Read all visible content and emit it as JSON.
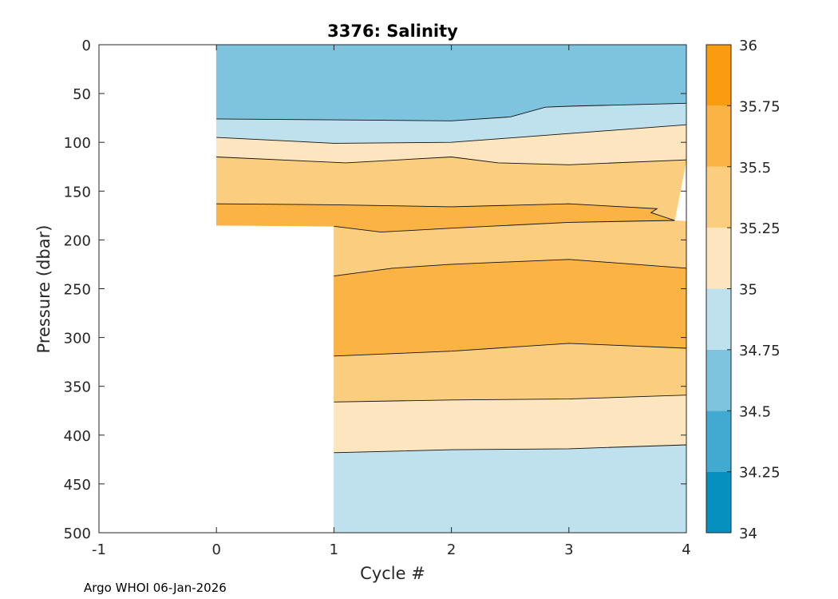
{
  "chart_data": {
    "type": "contour",
    "title": "3376:  Salinity",
    "xlabel": "Cycle #",
    "ylabel": "Pressure (dbar)",
    "xlim": [
      -1,
      4
    ],
    "ylim": [
      0,
      500
    ],
    "y_reversed": true,
    "xticks": [
      -1,
      0,
      1,
      2,
      3,
      4
    ],
    "yticks": [
      0,
      50,
      100,
      150,
      200,
      250,
      300,
      350,
      400,
      450,
      500
    ],
    "colorbar": {
      "ticks": [
        "34",
        "34.25",
        "34.5",
        "34.75",
        "35",
        "35.25",
        "35.5",
        "35.75",
        "36"
      ],
      "min": 34,
      "max": 36,
      "step": 0.25,
      "bands": [
        {
          "from": 34.0,
          "to": 34.25,
          "color": "#0590c0"
        },
        {
          "from": 34.25,
          "to": 34.5,
          "color": "#42a9d0"
        },
        {
          "from": 34.5,
          "to": 34.75,
          "color": "#7fc4df"
        },
        {
          "from": 34.75,
          "to": 35.0,
          "color": "#bee1ed"
        },
        {
          "from": 35.0,
          "to": 35.25,
          "color": "#fde6bf"
        },
        {
          "from": 35.25,
          "to": 35.5,
          "color": "#fbcd7e"
        },
        {
          "from": 35.5,
          "to": 35.75,
          "color": "#fbb443"
        },
        {
          "from": 35.75,
          "to": 36.0,
          "color": "#fa9c0f"
        }
      ]
    },
    "data_extent": [
      {
        "cycle": 0,
        "max_pressure": 185
      },
      {
        "cycle": 1,
        "max_pressure": 500
      },
      {
        "cycle": 2,
        "max_pressure": 500
      },
      {
        "cycle": 3,
        "max_pressure": 500
      },
      {
        "cycle": 4,
        "max_pressure": 500
      }
    ],
    "regions": [
      {
        "name": "band-34.5-34.75-surface",
        "color": "#7fc4df",
        "top": [
          [
            0,
            0
          ],
          [
            4,
            0
          ]
        ],
        "bottom": [
          [
            0,
            76
          ],
          [
            1,
            77
          ],
          [
            2,
            78
          ],
          [
            2.5,
            74
          ],
          [
            2.8,
            64
          ],
          [
            3,
            63
          ],
          [
            4,
            60
          ]
        ]
      },
      {
        "name": "band-34.75-35-upper",
        "color": "#bee1ed",
        "top": [
          [
            0,
            76
          ],
          [
            1,
            77
          ],
          [
            2,
            78
          ],
          [
            2.5,
            74
          ],
          [
            2.8,
            64
          ],
          [
            3,
            63
          ],
          [
            4,
            60
          ]
        ],
        "bottom": [
          [
            0,
            95
          ],
          [
            1,
            101
          ],
          [
            2,
            100
          ],
          [
            3,
            91
          ],
          [
            4,
            82
          ]
        ]
      },
      {
        "name": "band-35-35.25-upper",
        "color": "#fde6bf",
        "top": [
          [
            0,
            95
          ],
          [
            1,
            101
          ],
          [
            2,
            100
          ],
          [
            3,
            91
          ],
          [
            4,
            82
          ]
        ],
        "bottom": [
          [
            0,
            115
          ],
          [
            0.9,
            120
          ],
          [
            1.1,
            121
          ],
          [
            2,
            115
          ],
          [
            2.4,
            121
          ],
          [
            3,
            123
          ],
          [
            4,
            118
          ]
        ]
      },
      {
        "name": "band-35.25-35.5-upper",
        "color": "#fbcd7e",
        "top": [
          [
            0,
            115
          ],
          [
            0.9,
            120
          ],
          [
            1.1,
            121
          ],
          [
            2,
            115
          ],
          [
            2.4,
            121
          ],
          [
            3,
            123
          ],
          [
            4,
            118
          ]
        ],
        "bottom": [
          [
            0,
            163
          ],
          [
            1,
            164
          ],
          [
            2,
            166
          ],
          [
            3,
            163
          ],
          [
            3.75,
            168
          ],
          [
            3.7,
            172
          ],
          [
            3.9,
            180
          ]
        ]
      },
      {
        "name": "band-35.5-35.75-tongue",
        "color": "#fbb443",
        "top": [
          [
            0,
            163
          ],
          [
            1,
            164
          ],
          [
            2,
            166
          ],
          [
            3,
            163
          ],
          [
            3.75,
            168
          ],
          [
            3.7,
            172
          ],
          [
            3.9,
            180
          ]
        ],
        "bottom": [
          [
            0,
            185
          ],
          [
            1,
            186
          ],
          [
            1.4,
            192
          ],
          [
            2,
            188
          ],
          [
            3,
            182
          ],
          [
            3.9,
            180
          ]
        ]
      },
      {
        "name": "band-35.25-35.5-middle",
        "color": "#fbcd7e",
        "top": [
          [
            1,
            186
          ],
          [
            1.4,
            192
          ],
          [
            2,
            188
          ],
          [
            3,
            182
          ],
          [
            3.9,
            180
          ],
          [
            4,
            181
          ]
        ],
        "bottom": [
          [
            1,
            237
          ],
          [
            1.5,
            229
          ],
          [
            2,
            225
          ],
          [
            3,
            220
          ],
          [
            4,
            229
          ]
        ]
      },
      {
        "name": "band-35.5-35.75-core",
        "color": "#fbb443",
        "top": [
          [
            1,
            237
          ],
          [
            1.5,
            229
          ],
          [
            2,
            225
          ],
          [
            3,
            220
          ],
          [
            4,
            229
          ]
        ],
        "bottom": [
          [
            1,
            319
          ],
          [
            2,
            314
          ],
          [
            3,
            306
          ],
          [
            4,
            311
          ]
        ]
      },
      {
        "name": "band-35.25-35.5-lower",
        "color": "#fbcd7e",
        "top": [
          [
            1,
            319
          ],
          [
            2,
            314
          ],
          [
            3,
            306
          ],
          [
            4,
            311
          ]
        ],
        "bottom": [
          [
            1,
            366
          ],
          [
            2,
            364
          ],
          [
            3,
            363
          ],
          [
            4,
            359
          ]
        ]
      },
      {
        "name": "band-35-35.25-lower",
        "color": "#fde6bf",
        "top": [
          [
            1,
            366
          ],
          [
            2,
            364
          ],
          [
            3,
            363
          ],
          [
            4,
            359
          ]
        ],
        "bottom": [
          [
            1,
            418
          ],
          [
            2,
            415
          ],
          [
            3,
            414
          ],
          [
            4,
            410
          ]
        ]
      },
      {
        "name": "band-34.75-35-deep",
        "color": "#bee1ed",
        "top": [
          [
            1,
            418
          ],
          [
            2,
            415
          ],
          [
            3,
            414
          ],
          [
            4,
            410
          ]
        ],
        "bottom": [
          [
            1,
            500
          ],
          [
            4,
            500
          ]
        ]
      }
    ],
    "contour_lines": [
      [
        [
          0,
          76
        ],
        [
          1,
          77
        ],
        [
          2,
          78
        ],
        [
          2.5,
          74
        ],
        [
          2.8,
          64
        ],
        [
          3,
          63
        ],
        [
          4,
          60
        ]
      ],
      [
        [
          0,
          95
        ],
        [
          1,
          101
        ],
        [
          2,
          100
        ],
        [
          3,
          91
        ],
        [
          4,
          82
        ]
      ],
      [
        [
          0,
          115
        ],
        [
          0.9,
          120
        ],
        [
          1.1,
          121
        ],
        [
          2,
          115
        ],
        [
          2.4,
          121
        ],
        [
          3,
          123
        ],
        [
          4,
          118
        ]
      ],
      [
        [
          0,
          163
        ],
        [
          1,
          164
        ],
        [
          2,
          166
        ],
        [
          3,
          163
        ],
        [
          3.75,
          168
        ],
        [
          3.7,
          172
        ],
        [
          3.9,
          180
        ],
        [
          3,
          182
        ],
        [
          2,
          188
        ],
        [
          1.4,
          192
        ],
        [
          1,
          186
        ]
      ],
      [
        [
          1,
          237
        ],
        [
          1.5,
          229
        ],
        [
          2,
          225
        ],
        [
          3,
          220
        ],
        [
          4,
          229
        ]
      ],
      [
        [
          1,
          319
        ],
        [
          2,
          314
        ],
        [
          3,
          306
        ],
        [
          4,
          311
        ]
      ],
      [
        [
          1,
          366
        ],
        [
          2,
          364
        ],
        [
          3,
          363
        ],
        [
          4,
          359
        ]
      ],
      [
        [
          1,
          418
        ],
        [
          2,
          415
        ],
        [
          3,
          414
        ],
        [
          4,
          410
        ]
      ]
    ]
  },
  "footer": {
    "note": "Argo WHOI 06-Jan-2026"
  }
}
